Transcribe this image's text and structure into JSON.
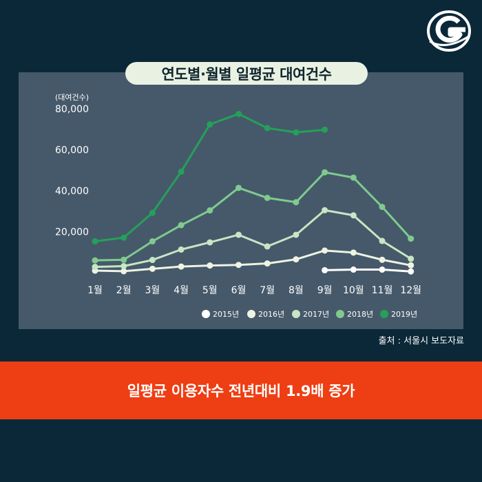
{
  "logo": {
    "icon": "g-circle-logo-icon"
  },
  "source_text": "출처 : 서울시 보도자료",
  "banner_text": "일평균 이용자수 전년대비 1.9배 증가",
  "chart_data": {
    "type": "line",
    "title": "연도별·월별 일평균 대여건수",
    "ylabel": "(대여건수)",
    "xlabel": "",
    "categories": [
      "1월",
      "2월",
      "3월",
      "4월",
      "5월",
      "6월",
      "7월",
      "8월",
      "9월",
      "10월",
      "11월",
      "12월"
    ],
    "ylim": [
      0,
      80000
    ],
    "yticks": [
      20000,
      40000,
      60000,
      80000
    ],
    "ytick_labels": [
      "20,000",
      "40,000",
      "60,000",
      "80,000"
    ],
    "grid": false,
    "legend_position": "bottom-right",
    "series": [
      {
        "name": "2015년",
        "color": "#ffffff",
        "values": [
          null,
          null,
          null,
          null,
          null,
          null,
          null,
          null,
          1200,
          1500,
          1500,
          600
        ]
      },
      {
        "name": "2016년",
        "color": "#eef4e4",
        "values": [
          1000,
          700,
          1900,
          3000,
          3500,
          3800,
          4500,
          6500,
          10800,
          9800,
          6300,
          3600
        ]
      },
      {
        "name": "2017년",
        "color": "#c7e6c5",
        "values": [
          2800,
          3200,
          6200,
          11300,
          14800,
          18500,
          12800,
          18500,
          30500,
          28000,
          15500,
          6800
        ]
      },
      {
        "name": "2018년",
        "color": "#7fcb8f",
        "values": [
          6000,
          6300,
          15300,
          23200,
          30400,
          41400,
          36500,
          34400,
          49000,
          46400,
          32100,
          16600
        ]
      },
      {
        "name": "2019년",
        "color": "#24a05a",
        "values": [
          15300,
          17100,
          29200,
          49300,
          72400,
          77500,
          70600,
          68500,
          69800,
          null,
          null,
          null
        ]
      }
    ]
  }
}
